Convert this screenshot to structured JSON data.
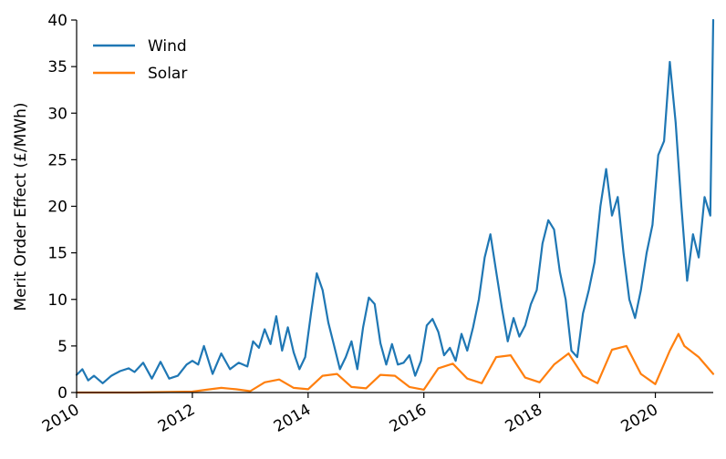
{
  "chart_data": {
    "type": "line",
    "title": "",
    "xlabel": "",
    "ylabel": "Merit Order Effect (£/MWh)",
    "xlim": [
      2010.0,
      2021.0
    ],
    "ylim": [
      0,
      40
    ],
    "x_ticks": [
      2010,
      2012,
      2014,
      2016,
      2018,
      2020
    ],
    "x_tick_labels": [
      "2010",
      "2012",
      "2014",
      "2016",
      "2018",
      "2020"
    ],
    "y_ticks": [
      0,
      5,
      10,
      15,
      20,
      25,
      30,
      35,
      40
    ],
    "y_tick_labels": [
      "0",
      "5",
      "10",
      "15",
      "20",
      "25",
      "30",
      "35",
      "40"
    ],
    "grid": false,
    "legend_position": "top-left",
    "series": [
      {
        "name": "Wind",
        "color": "#1f77b4",
        "x": [
          2010.0,
          2010.1,
          2010.2,
          2010.3,
          2010.45,
          2010.6,
          2010.75,
          2010.9,
          2011.0,
          2011.15,
          2011.3,
          2011.45,
          2011.6,
          2011.75,
          2011.9,
          2012.0,
          2012.1,
          2012.2,
          2012.35,
          2012.5,
          2012.65,
          2012.8,
          2012.95,
          2013.05,
          2013.15,
          2013.25,
          2013.35,
          2013.45,
          2013.55,
          2013.65,
          2013.75,
          2013.85,
          2013.95,
          2014.05,
          2014.15,
          2014.25,
          2014.35,
          2014.45,
          2014.55,
          2014.65,
          2014.75,
          2014.85,
          2014.95,
          2015.05,
          2015.15,
          2015.25,
          2015.35,
          2015.45,
          2015.55,
          2015.65,
          2015.75,
          2015.85,
          2015.95,
          2016.05,
          2016.15,
          2016.25,
          2016.35,
          2016.45,
          2016.55,
          2016.65,
          2016.75,
          2016.85,
          2016.95,
          2017.05,
          2017.15,
          2017.25,
          2017.35,
          2017.45,
          2017.55,
          2017.65,
          2017.75,
          2017.85,
          2017.95,
          2018.05,
          2018.15,
          2018.25,
          2018.35,
          2018.45,
          2018.55,
          2018.65,
          2018.75,
          2018.85,
          2018.95,
          2019.05,
          2019.15,
          2019.25,
          2019.35,
          2019.45,
          2019.55,
          2019.65,
          2019.75,
          2019.85,
          2019.95,
          2020.05,
          2020.15,
          2020.25,
          2020.35,
          2020.45,
          2020.55,
          2020.65,
          2020.75,
          2020.85,
          2020.95,
          2021.0
        ],
        "values": [
          1.9,
          2.5,
          1.3,
          1.8,
          1.0,
          1.8,
          2.3,
          2.6,
          2.2,
          3.2,
          1.5,
          3.3,
          1.5,
          1.8,
          3.0,
          3.4,
          3.0,
          5.0,
          2.0,
          4.2,
          2.5,
          3.2,
          2.8,
          5.5,
          4.8,
          6.8,
          5.2,
          8.2,
          4.5,
          7.0,
          4.3,
          2.5,
          3.8,
          8.5,
          12.8,
          11.0,
          7.5,
          5.0,
          2.5,
          3.8,
          5.5,
          2.5,
          7.0,
          10.2,
          9.5,
          5.3,
          3.0,
          5.2,
          3.0,
          3.2,
          4.0,
          1.8,
          3.4,
          7.2,
          7.9,
          6.5,
          4.0,
          4.8,
          3.4,
          6.3,
          4.5,
          7.0,
          10.0,
          14.5,
          17.0,
          13.0,
          9.0,
          5.5,
          8.0,
          6.0,
          7.2,
          9.5,
          11.0,
          16.0,
          18.5,
          17.5,
          13.0,
          10.0,
          4.5,
          3.8,
          8.5,
          11.0,
          14.0,
          20.0,
          24.0,
          19.0,
          21.0,
          15.0,
          10.0,
          8.0,
          11.0,
          15.0,
          18.0,
          25.5,
          27.0,
          35.5,
          29.0,
          20.0,
          12.0,
          17.0,
          14.5,
          21.0,
          19.0,
          40.0
        ]
      },
      {
        "name": "Solar",
        "color": "#ff7f0e",
        "x": [
          2010.0,
          2010.5,
          2011.0,
          2011.5,
          2012.0,
          2012.25,
          2012.5,
          2012.75,
          2013.0,
          2013.25,
          2013.5,
          2013.75,
          2014.0,
          2014.25,
          2014.5,
          2014.75,
          2015.0,
          2015.25,
          2015.5,
          2015.75,
          2016.0,
          2016.25,
          2016.5,
          2016.75,
          2017.0,
          2017.25,
          2017.5,
          2017.75,
          2018.0,
          2018.25,
          2018.5,
          2018.75,
          2019.0,
          2019.25,
          2019.5,
          2019.75,
          2020.0,
          2020.25,
          2020.4,
          2020.5,
          2020.75,
          2021.0
        ],
        "values": [
          0.0,
          0.0,
          0.0,
          0.05,
          0.1,
          0.3,
          0.5,
          0.35,
          0.15,
          1.1,
          1.4,
          0.5,
          0.35,
          1.8,
          2.0,
          0.6,
          0.45,
          1.9,
          1.8,
          0.6,
          0.3,
          2.6,
          3.1,
          1.5,
          1.0,
          3.8,
          4.0,
          1.6,
          1.1,
          3.0,
          4.2,
          1.8,
          1.0,
          4.6,
          5.0,
          2.0,
          0.9,
          4.5,
          6.3,
          5.0,
          3.8,
          2.0
        ]
      }
    ]
  }
}
